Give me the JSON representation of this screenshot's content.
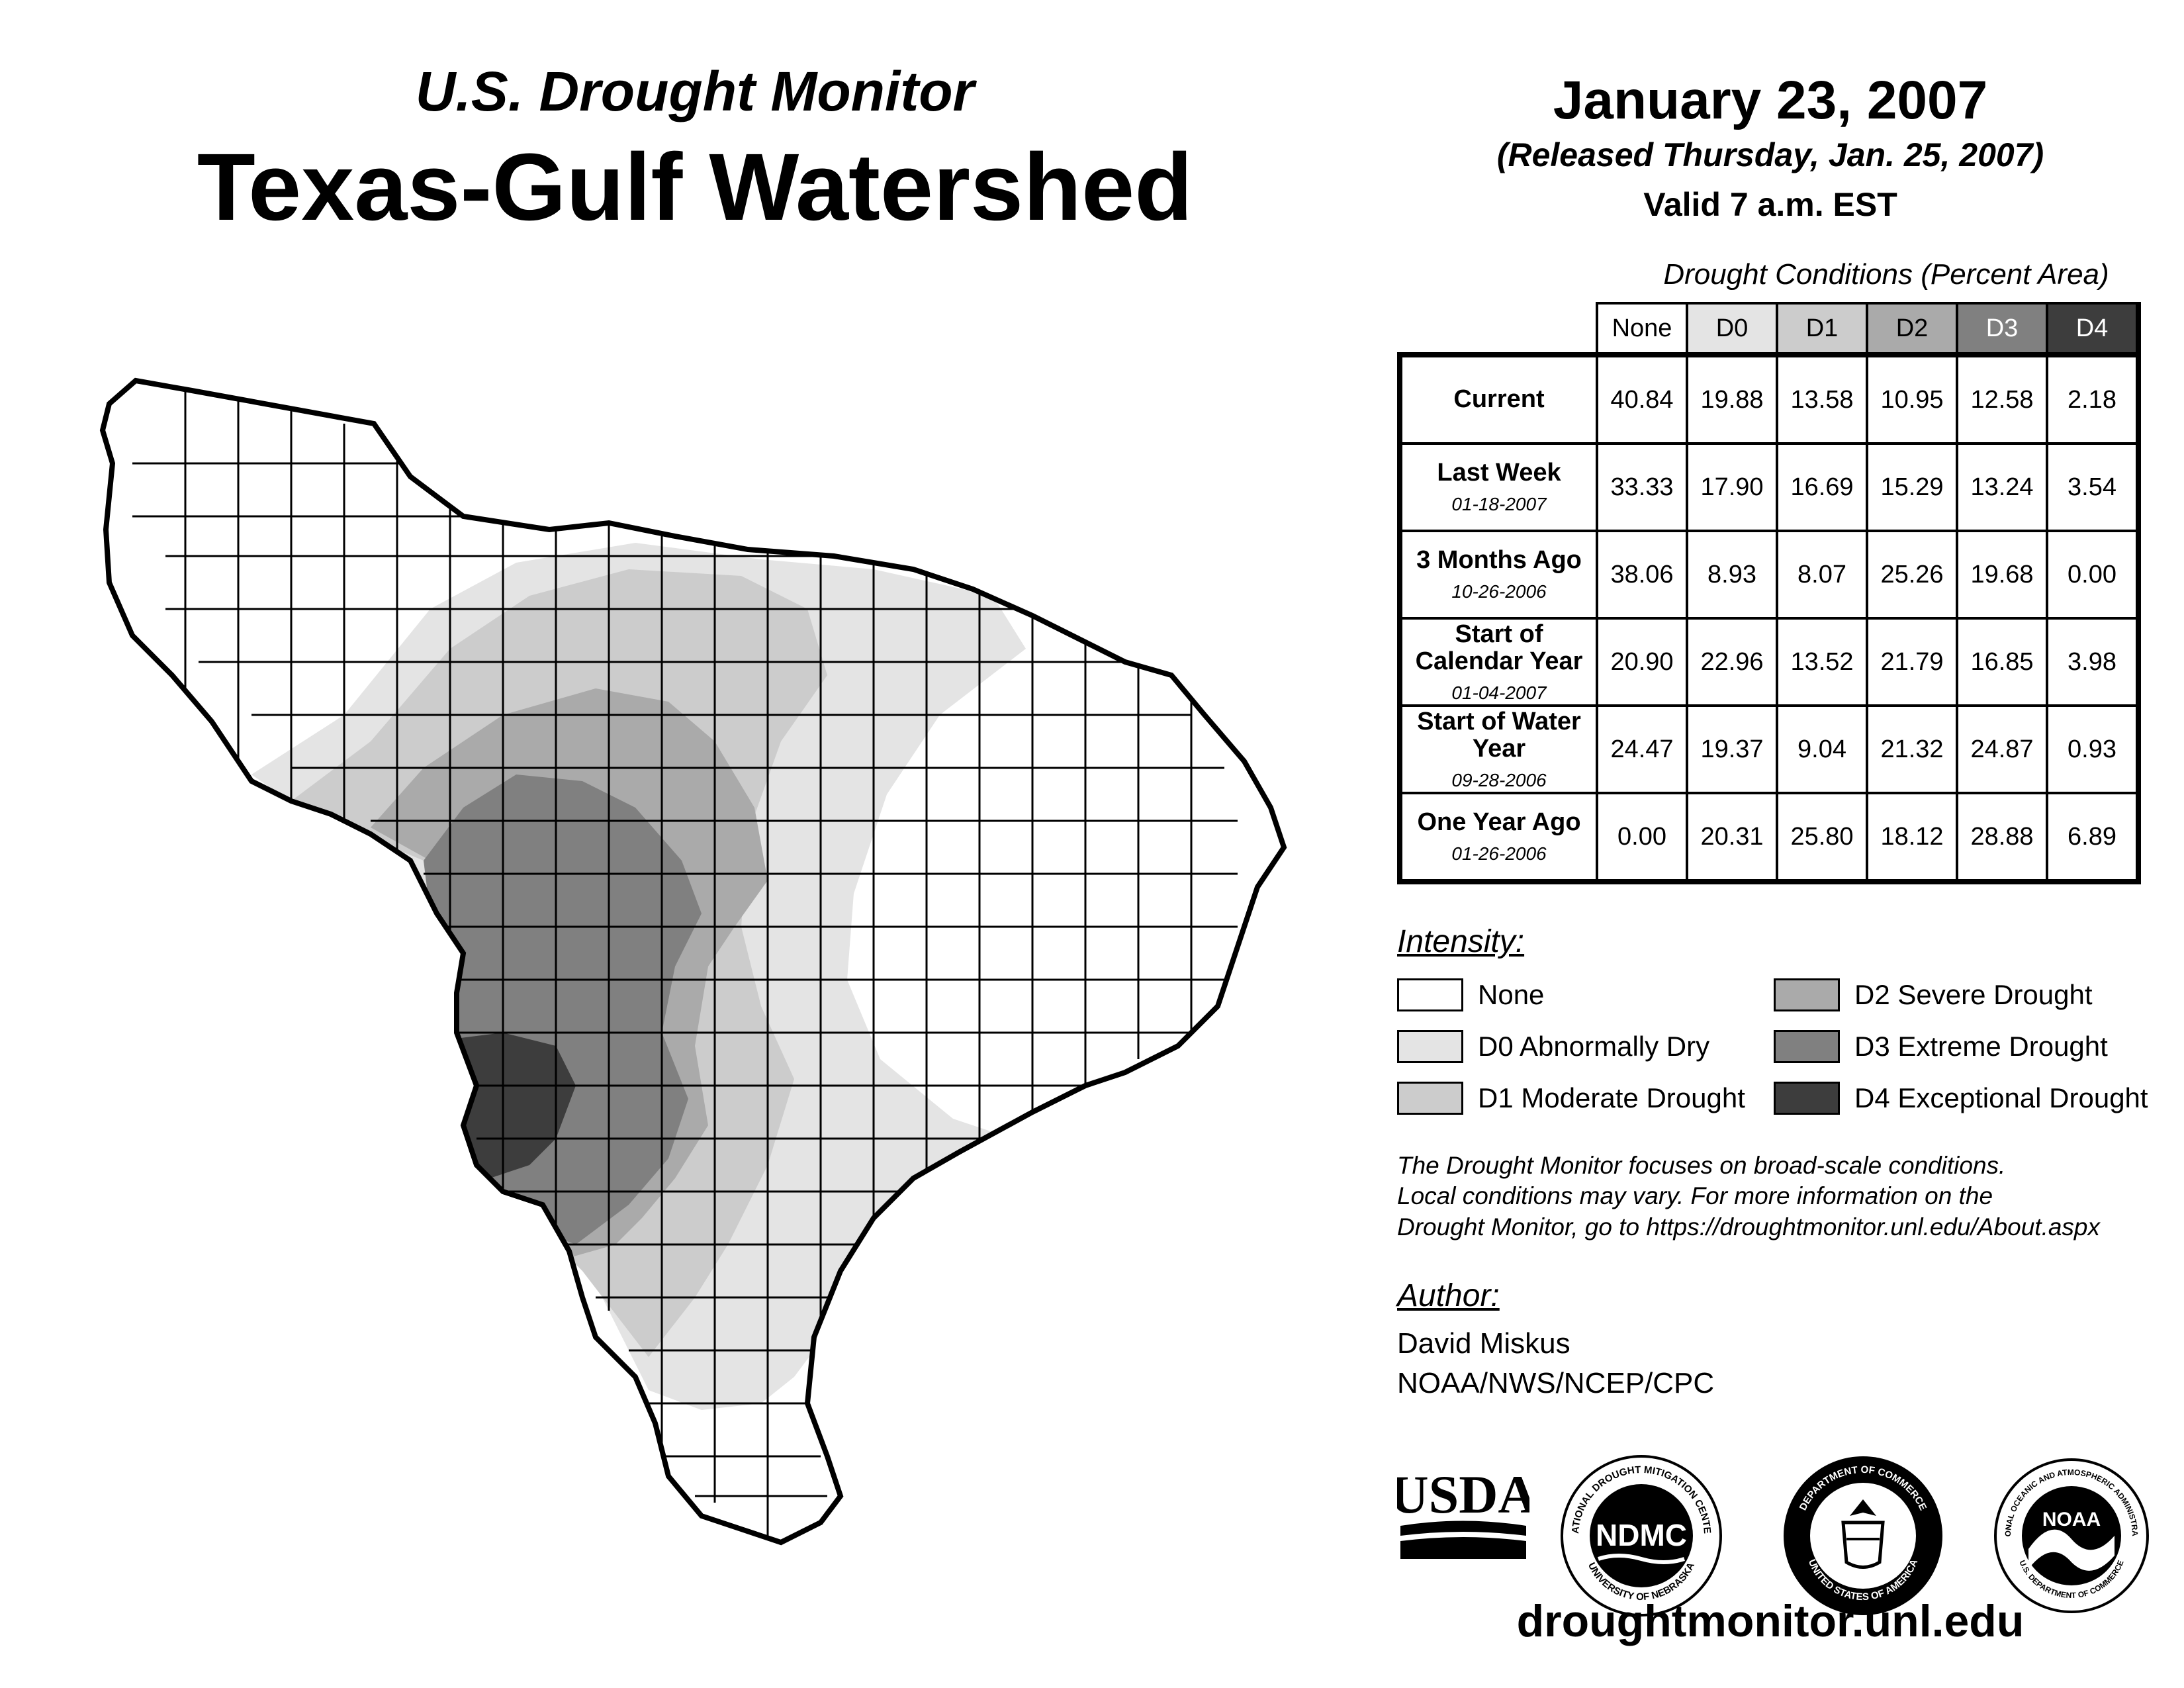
{
  "header": {
    "subtitle": "U.S. Drought Monitor",
    "title": "Texas-Gulf Watershed",
    "date": "January 23, 2007",
    "released": "(Released Thursday, Jan. 25, 2007)",
    "valid": "Valid 7 a.m. EST"
  },
  "table": {
    "caption": "Drought Conditions (Percent Area)",
    "columns": [
      "None",
      "D0",
      "D1",
      "D2",
      "D3",
      "D4"
    ],
    "column_colors": [
      "#ffffff",
      "#e4e4e4",
      "#cccccc",
      "#aaaaaa",
      "#808080",
      "#3d3d3d"
    ],
    "column_text_colors": [
      "#000000",
      "#000000",
      "#000000",
      "#000000",
      "#ffffff",
      "#ffffff"
    ],
    "rows": [
      {
        "label": "Current",
        "sub": "",
        "values": [
          "40.84",
          "19.88",
          "13.58",
          "10.95",
          "12.58",
          "2.18"
        ]
      },
      {
        "label": "Last Week",
        "sub": "01-18-2007",
        "values": [
          "33.33",
          "17.90",
          "16.69",
          "15.29",
          "13.24",
          "3.54"
        ]
      },
      {
        "label": "3 Months Ago",
        "sub": "10-26-2006",
        "values": [
          "38.06",
          "8.93",
          "8.07",
          "25.26",
          "19.68",
          "0.00"
        ]
      },
      {
        "label": "Start of Calendar Year",
        "sub": "01-04-2007",
        "values": [
          "20.90",
          "22.96",
          "13.52",
          "21.79",
          "16.85",
          "3.98"
        ]
      },
      {
        "label": "Start of Water Year",
        "sub": "09-28-2006",
        "values": [
          "24.47",
          "19.37",
          "9.04",
          "21.32",
          "24.87",
          "0.93"
        ]
      },
      {
        "label": "One Year Ago",
        "sub": "01-26-2006",
        "values": [
          "0.00",
          "20.31",
          "25.80",
          "18.12",
          "28.88",
          "6.89"
        ]
      }
    ]
  },
  "legend": {
    "heading": "Intensity:",
    "items": [
      {
        "label": "None",
        "color": "#ffffff"
      },
      {
        "label": "D0 Abnormally Dry",
        "color": "#e4e4e4"
      },
      {
        "label": "D1 Moderate Drought",
        "color": "#cccccc"
      },
      {
        "label": "D2 Severe Drought",
        "color": "#aaaaaa"
      },
      {
        "label": "D3 Extreme Drought",
        "color": "#808080"
      },
      {
        "label": "D4 Exceptional Drought",
        "color": "#3d3d3d"
      }
    ]
  },
  "disclaimer": {
    "line1": "The Drought Monitor focuses on broad-scale conditions.",
    "line2": "Local conditions may vary. For more information on the",
    "line3": "Drought Monitor, go to https://droughtmonitor.unl.edu/About.aspx"
  },
  "author": {
    "heading": "Author:",
    "name": "David Miskus",
    "org": "NOAA/NWS/NCEP/CPC"
  },
  "logos": {
    "usda": "USDA",
    "ndmc": "NDMC",
    "ndmc_ring_top": "NATIONAL DROUGHT MITIGATION CENTER",
    "ndmc_ring_bottom": "UNIVERSITY OF NEBRASKA",
    "doc_ring_top": "DEPARTMENT OF COMMERCE",
    "doc_ring_bottom": "UNITED STATES OF AMERICA",
    "noaa": "NOAA",
    "noaa_ring_top": "NATIONAL OCEANIC AND ATMOSPHERIC ADMINISTRATION",
    "noaa_ring_bottom": "U.S. DEPARTMENT OF COMMERCE"
  },
  "website": "droughtmonitor.unl.edu"
}
